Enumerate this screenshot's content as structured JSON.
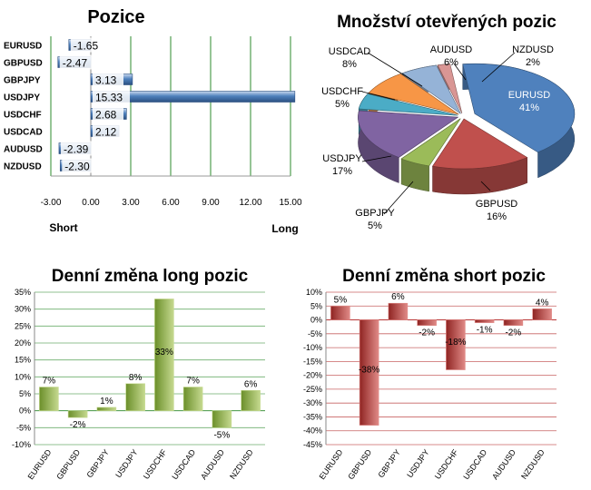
{
  "chart_data": [
    {
      "type": "bar",
      "orientation": "horizontal",
      "title": "Pozice",
      "categories": [
        "EURUSD",
        "GBPUSD",
        "GBPJPY",
        "USDJPY",
        "USDCHF",
        "USDCAD",
        "AUDUSD",
        "NZDUSD"
      ],
      "values": [
        -1.65,
        -2.47,
        3.13,
        15.33,
        2.68,
        2.12,
        -2.39,
        -2.3
      ],
      "value_labels": [
        "-1.65",
        "-2.47",
        "3.13",
        "15.33",
        "2.68",
        "2.12",
        "-2.39",
        "-2.30"
      ],
      "xlim": [
        -3,
        15
      ],
      "xticks": [
        "-3.00",
        "0.00",
        "3.00",
        "6.00",
        "9.00",
        "12.00",
        "15.00"
      ],
      "left_label": "Short",
      "right_label": "Long",
      "colors": {
        "bar": "#4f81bd",
        "grid": "#2e8b2e"
      }
    },
    {
      "type": "pie",
      "title": "Množství otevřených pozic",
      "labels": [
        "EURUSD",
        "GBPUSD",
        "GBPJPY",
        "USDJPY",
        "USDCHF",
        "USDCAD",
        "AUDUSD",
        "NZDUSD"
      ],
      "values": [
        41,
        16,
        5,
        17,
        5,
        8,
        6,
        2
      ],
      "percent_labels": [
        "41%",
        "16%",
        "5%",
        "17%",
        "5%",
        "8%",
        "6%",
        "2%"
      ],
      "colors": [
        "#4f81bd",
        "#c0504d",
        "#9bbb59",
        "#8064a2",
        "#4bacc6",
        "#f79646",
        "#95b3d7",
        "#d99694"
      ]
    },
    {
      "type": "bar",
      "title": "Denní změna long pozic",
      "categories": [
        "EURUSD",
        "GBPUSD",
        "GBPJPY",
        "USDJPY",
        "USDCHF",
        "USDCAD",
        "AUDUSD",
        "NZDUSD"
      ],
      "values": [
        7,
        -2,
        1,
        8,
        33,
        7,
        -5,
        6
      ],
      "value_labels": [
        "7%",
        "-2%",
        "1%",
        "8%",
        "33%",
        "7%",
        "-5%",
        "6%"
      ],
      "ylim": [
        -10,
        35
      ],
      "yticks": [
        "-10%",
        "-5%",
        "0%",
        "5%",
        "10%",
        "15%",
        "20%",
        "25%",
        "30%",
        "35%"
      ],
      "colors": {
        "bar": "#9bbb59",
        "grid": "#2e8b2e"
      }
    },
    {
      "type": "bar",
      "title": "Denní změna short pozic",
      "categories": [
        "EURUSD",
        "GBPUSD",
        "GBPJPY",
        "USDJPY",
        "USDCHF",
        "USDCAD",
        "AUDUSD",
        "NZDUSD"
      ],
      "values": [
        5,
        -38,
        6,
        -2,
        -18,
        -1,
        -2,
        4
      ],
      "value_labels": [
        "5%",
        "-38%",
        "6%",
        "-2%",
        "-18%",
        "-1%",
        "-2%",
        "4%"
      ],
      "ylim": [
        -45,
        10
      ],
      "yticks": [
        "-45%",
        "-40%",
        "-35%",
        "-30%",
        "-25%",
        "-20%",
        "-15%",
        "-10%",
        "-5%",
        "0%",
        "5%",
        "10%"
      ],
      "colors": {
        "bar": "#c0504d",
        "grid": "#b22222"
      }
    }
  ]
}
